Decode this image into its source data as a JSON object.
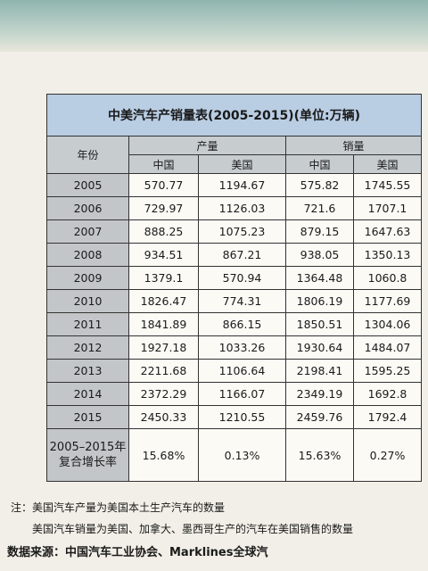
{
  "header": {
    "title": "中美汽车产销量表(2005-2015)(单位:万辆)",
    "year": "年份",
    "production": "产量",
    "sales": "销量",
    "production_columns": [
      "中国",
      "美国"
    ],
    "sales_columns": [
      "中国",
      "美国"
    ]
  },
  "table": {
    "rows": [
      [
        "2005",
        "570.77",
        "1194.67",
        "575.82",
        "1745.55"
      ],
      [
        "2006",
        "729.97",
        "1126.03",
        "721.6",
        "1707.1"
      ],
      [
        "2007",
        "888.25",
        "1075.23",
        "879.15",
        "1647.63"
      ],
      [
        "2008",
        "934.51",
        "867.21",
        "938.05",
        "1350.13"
      ],
      [
        "2009",
        "1379.1",
        "570.94",
        "1364.48",
        "1060.8"
      ],
      [
        "2010",
        "1826.47",
        "774.31",
        "1806.19",
        "1177.69"
      ],
      [
        "2011",
        "1841.89",
        "866.15",
        "1850.51",
        "1304.06"
      ],
      [
        "2012",
        "1927.18",
        "1033.26",
        "1930.64",
        "1484.07"
      ],
      [
        "2013",
        "2211.68",
        "1106.64",
        "2198.41",
        "1595.25"
      ],
      [
        "2014",
        "2372.29",
        "1166.07",
        "2349.19",
        "1692.8"
      ],
      [
        "2015",
        "2450.33",
        "1210.55",
        "2459.76",
        "1792.4"
      ]
    ],
    "growth": {
      "label": [
        "2005–2015年",
        "复合增长率"
      ],
      "values": [
        "15.68%",
        "0.13%",
        "15.63%",
        "0.27%"
      ]
    }
  },
  "notes": [
    "注：美国汽车产量为美国本土生产汽车的数量",
    "美国汽车销量为美国、加拿大、墨西哥生产的汽车在美国销售的数量"
  ],
  "source": "数据来源：中国汽车工业协会、Marklines全球汽"
}
